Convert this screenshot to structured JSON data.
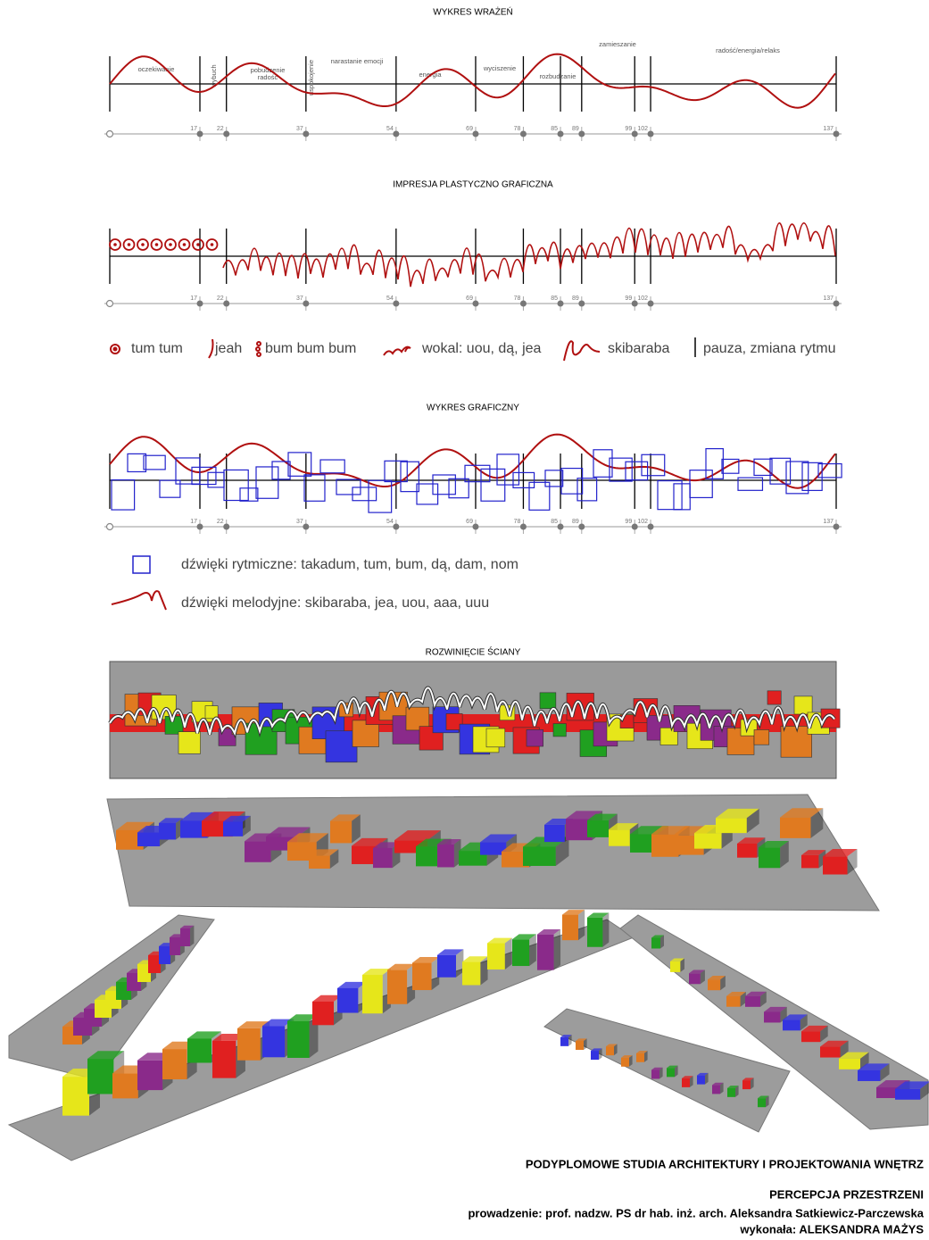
{
  "charts": [
    {
      "title": "WYKRES WRAŻEŃ",
      "labels": [
        "oczekiwanie",
        "wybuch",
        "pobudzenie",
        "radość",
        "uspokojenie",
        "narastanie emocji",
        "energia",
        "wyciszenie",
        "rozbudzanie",
        "zamieszanie",
        "radość/energia/relaks"
      ]
    },
    {
      "title": "IMPRESJA PLASTYCZNO GRAFICZNA"
    },
    {
      "title": "WYKRES GRAFICZNY"
    }
  ],
  "timeline": [
    17,
    22,
    37,
    54,
    69,
    78,
    85,
    89,
    99,
    102,
    137
  ],
  "legend_impression": [
    "tum tum",
    "jeah",
    "bum bum bum",
    "wokal: uou, dą, jea",
    "skibaraba",
    "pauza, zmiana rytmu"
  ],
  "legend_graphic": [
    "dźwięki rytmiczne: takadum, tum, bum, dą, dam, nom",
    "dźwięki melodyjne: skibaraba, jea, uou, aaa, uuu"
  ],
  "wall_title": "ROZWINIĘCIE ŚCIANY",
  "footer": {
    "school": "PODYPLOMOWE STUDIA ARCHITEKTURY I PROJEKTOWANIA WNĘTRZ",
    "course": "PERCEPCJA PRZESTRZENI",
    "supervisor": "prowadzenie: prof. nadzw. PS dr hab. inż. arch. Aleksandra Satkiewicz-Parczewska",
    "author": "wykonała: ALEKSANDRA MAŻYS"
  }
}
